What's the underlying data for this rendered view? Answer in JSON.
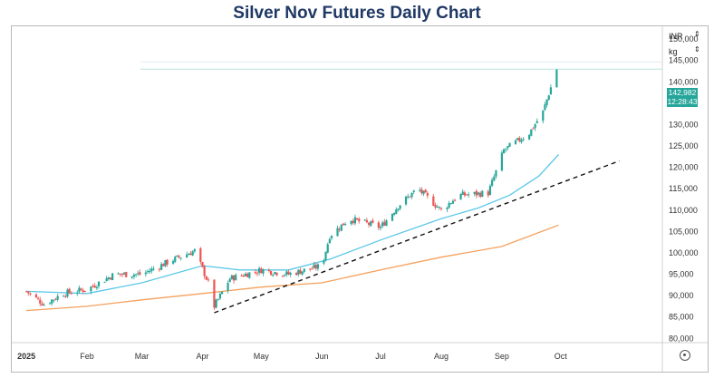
{
  "title": "Silver Nov Futures Daily Chart",
  "currency_label": "INR",
  "unit_label": "kg",
  "last_price": "142,982",
  "countdown": "12:28:43",
  "icons": {
    "settings": "gear-icon",
    "dropdown": "chevron-updown-icon"
  },
  "colors": {
    "up": "#26a69a",
    "down": "#ef5350",
    "ma_fast": "#5bc8e8",
    "ma_slow": "#f5a05c",
    "trendline": "#111111",
    "title": "#1f3864"
  },
  "chart_data": {
    "type": "candlestick",
    "title": "Silver Nov Futures Daily Chart",
    "x_ticks": [
      "2025",
      "Feb",
      "Mar",
      "Apr",
      "May",
      "Jun",
      "Jul",
      "Aug",
      "Sep",
      "Oct"
    ],
    "y_ticks": [
      "80,000",
      "85,000",
      "90,000",
      "95,000",
      "100,000",
      "105,000",
      "110,000",
      "115,000",
      "120,000",
      "125,000",
      "130,000",
      "135,000",
      "140,000",
      "145,000",
      "150,000"
    ],
    "ylim": [
      79000,
      153000
    ],
    "last_value": 142982,
    "series": [
      {
        "name": "Silver Nov Futures",
        "kind": "candles",
        "note_points": [
          [
            "2025-01-01",
            91000
          ],
          [
            "2025-01-10",
            88000
          ],
          [
            "2025-01-20",
            90500
          ],
          [
            "2025-02-01",
            91500
          ],
          [
            "2025-02-15",
            95000
          ],
          [
            "2025-03-01",
            95000
          ],
          [
            "2025-03-15",
            98000
          ],
          [
            "2025-03-28",
            100500
          ],
          [
            "2025-04-04",
            93000
          ],
          [
            "2025-04-07",
            87500
          ],
          [
            "2025-04-15",
            94000
          ],
          [
            "2025-05-01",
            96000
          ],
          [
            "2025-05-15",
            95000
          ],
          [
            "2025-06-01",
            97000
          ],
          [
            "2025-06-05",
            104000
          ],
          [
            "2025-06-15",
            108000
          ],
          [
            "2025-07-01",
            106000
          ],
          [
            "2025-07-10",
            111000
          ],
          [
            "2025-07-20",
            115000
          ],
          [
            "2025-08-01",
            110000
          ],
          [
            "2025-08-10",
            113500
          ],
          [
            "2025-08-25",
            114000
          ],
          [
            "2025-09-02",
            124000
          ],
          [
            "2025-09-15",
            128000
          ],
          [
            "2025-09-22",
            133000
          ],
          [
            "2025-09-29",
            142982
          ]
        ]
      },
      {
        "name": "",
        "kind": "line",
        "color": "#5bc8e8",
        "points": [
          [
            "2025-01-01",
            91000
          ],
          [
            "2025-02-01",
            90500
          ],
          [
            "2025-03-01",
            93000
          ],
          [
            "2025-04-01",
            97000
          ],
          [
            "2025-04-20",
            96000
          ],
          [
            "2025-05-15",
            96000
          ],
          [
            "2025-06-05",
            98500
          ],
          [
            "2025-07-01",
            103000
          ],
          [
            "2025-08-01",
            108000
          ],
          [
            "2025-08-20",
            110500
          ],
          [
            "2025-09-05",
            113500
          ],
          [
            "2025-09-20",
            118000
          ],
          [
            "2025-09-30",
            123000
          ]
        ]
      },
      {
        "name": "",
        "kind": "line",
        "color": "#f5a05c",
        "points": [
          [
            "2025-01-01",
            86500
          ],
          [
            "2025-02-01",
            87500
          ],
          [
            "2025-03-01",
            89000
          ],
          [
            "2025-04-01",
            90500
          ],
          [
            "2025-05-01",
            92000
          ],
          [
            "2025-06-01",
            93000
          ],
          [
            "2025-07-01",
            96000
          ],
          [
            "2025-08-01",
            99000
          ],
          [
            "2025-09-01",
            101500
          ],
          [
            "2025-09-30",
            106500
          ]
        ]
      },
      {
        "name": "",
        "kind": "trendline",
        "color": "#111111",
        "points": [
          [
            "2025-04-07",
            86000
          ],
          [
            "2025-10-31",
            121500
          ]
        ]
      }
    ]
  }
}
